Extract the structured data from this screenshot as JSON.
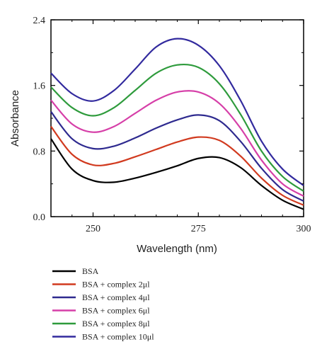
{
  "chart_data": {
    "type": "line",
    "title": "",
    "xlabel": "Wavelength (nm)",
    "ylabel": "Absorbance",
    "xlim": [
      240,
      300
    ],
    "ylim": [
      0,
      2.4
    ],
    "x_ticks": [
      250,
      275,
      300
    ],
    "x_tick_labels": [
      "250",
      "275",
      "300"
    ],
    "y_ticks": [
      0,
      0.8,
      1.6,
      2.4
    ],
    "y_tick_labels": [
      "0.0",
      "0.8",
      "1.6",
      "2.4"
    ],
    "grid": false,
    "legend_placement": "bottom",
    "x": [
      240,
      245,
      250,
      255,
      260,
      265,
      270,
      275,
      280,
      285,
      290,
      295,
      300
    ],
    "series": [
      {
        "name": "BSA",
        "color": "#000000",
        "values": [
          0.95,
          0.58,
          0.44,
          0.42,
          0.47,
          0.54,
          0.62,
          0.71,
          0.72,
          0.6,
          0.38,
          0.2,
          0.09
        ]
      },
      {
        "name": "BSA + complex 2μl",
        "color": "#d13a1f",
        "values": [
          1.1,
          0.76,
          0.63,
          0.65,
          0.73,
          0.82,
          0.91,
          0.97,
          0.93,
          0.74,
          0.47,
          0.26,
          0.14
        ]
      },
      {
        "name": "BSA + complex 4μl",
        "color": "#2e2a8f",
        "values": [
          1.28,
          0.95,
          0.83,
          0.86,
          0.96,
          1.08,
          1.18,
          1.24,
          1.17,
          0.92,
          0.59,
          0.33,
          0.19
        ]
      },
      {
        "name": "BSA + complex 6μl",
        "color": "#d63fa8",
        "values": [
          1.42,
          1.13,
          1.03,
          1.1,
          1.26,
          1.42,
          1.52,
          1.52,
          1.38,
          1.08,
          0.69,
          0.4,
          0.25
        ]
      },
      {
        "name": "BSA + complex 8μl",
        "color": "#2e9b3c",
        "values": [
          1.58,
          1.33,
          1.23,
          1.33,
          1.54,
          1.75,
          1.85,
          1.82,
          1.62,
          1.25,
          0.8,
          0.49,
          0.31
        ]
      },
      {
        "name": "BSA + complex 10μl",
        "color": "#322a9e",
        "values": [
          1.75,
          1.5,
          1.41,
          1.54,
          1.8,
          2.07,
          2.17,
          2.09,
          1.84,
          1.42,
          0.92,
          0.58,
          0.38
        ]
      }
    ]
  }
}
